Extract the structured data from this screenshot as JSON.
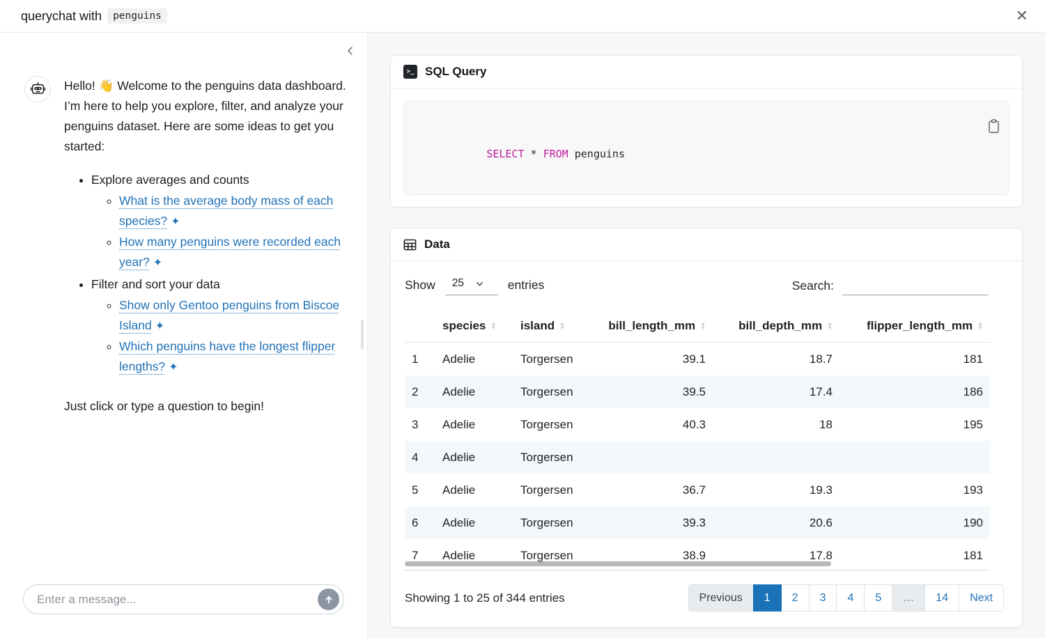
{
  "window": {
    "title_prefix": "querychat with",
    "dataset_chip": "penguins"
  },
  "icons": {
    "close_glyph": "✕",
    "terminal_glyph": ">_"
  },
  "chat": {
    "greeting": "Hello! 👋 Welcome to the penguins data dashboard. I’m here to help you explore, filter, and analyze your penguins dataset. Here are some ideas to get you started:",
    "groups": [
      {
        "label": "Explore averages and counts",
        "links": [
          {
            "text": "What is the average body mass of each species?"
          },
          {
            "text": "How many penguins were recorded each year?"
          }
        ]
      },
      {
        "label": "Filter and sort your data",
        "links": [
          {
            "text": "Show only Gentoo penguins from Biscoe Island"
          },
          {
            "text": "Which penguins have the longest flipper lengths?"
          }
        ]
      }
    ],
    "star": "✦",
    "closing": "Just click or type a question to begin!",
    "input_placeholder": "Enter a message..."
  },
  "sql_card": {
    "title": "SQL Query",
    "code": {
      "kw1": "SELECT",
      "op": " * ",
      "kw2": "FROM",
      "rest": " penguins"
    }
  },
  "data_card": {
    "title": "Data",
    "length_control": {
      "show": "Show",
      "value": "25",
      "entries": "entries"
    },
    "search": {
      "label": "Search:",
      "value": ""
    },
    "table": {
      "columns": [
        "",
        "species",
        "island",
        "bill_length_mm",
        "bill_depth_mm",
        "flipper_length_mm"
      ],
      "rows": [
        [
          "1",
          "Adelie",
          "Torgersen",
          "39.1",
          "18.7",
          "181"
        ],
        [
          "2",
          "Adelie",
          "Torgersen",
          "39.5",
          "17.4",
          "186"
        ],
        [
          "3",
          "Adelie",
          "Torgersen",
          "40.3",
          "18",
          "195"
        ],
        [
          "4",
          "Adelie",
          "Torgersen",
          "",
          "",
          ""
        ],
        [
          "5",
          "Adelie",
          "Torgersen",
          "36.7",
          "19.3",
          "193"
        ],
        [
          "6",
          "Adelie",
          "Torgersen",
          "39.3",
          "20.6",
          "190"
        ],
        [
          "7",
          "Adelie",
          "Torgersen",
          "38.9",
          "17.8",
          "181"
        ]
      ]
    },
    "info": "Showing 1 to 25 of 344 entries",
    "pagination": [
      {
        "label": "Previous",
        "state": "disabled"
      },
      {
        "label": "1",
        "state": "active"
      },
      {
        "label": "2",
        "state": "link"
      },
      {
        "label": "3",
        "state": "link"
      },
      {
        "label": "4",
        "state": "link"
      },
      {
        "label": "5",
        "state": "link"
      },
      {
        "label": "…",
        "state": "ellipsis"
      },
      {
        "label": "14",
        "state": "link"
      },
      {
        "label": "Next",
        "state": "link"
      }
    ]
  },
  "colors": {
    "accent_blue": "#1a73b8",
    "link_blue": "#2273b8",
    "keyword_magenta": "#c01a9b",
    "row_stripe": "#f3f8fb"
  }
}
